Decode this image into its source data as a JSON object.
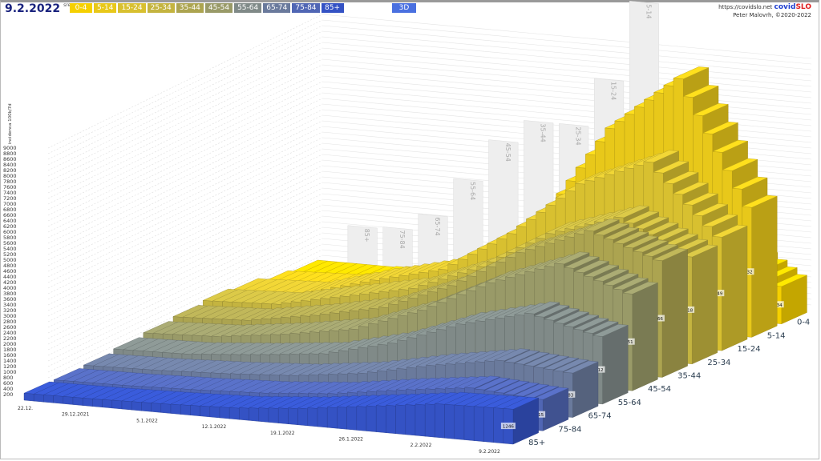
{
  "header": {
    "date": "9.2.2022",
    "date_suffix": "sre",
    "button_3d": "3D",
    "url": "https://covidslo.net",
    "brand_a": "covid",
    "brand_b": "SLO",
    "author": "Peter Malovrh, ©2020-2022"
  },
  "chart_data": {
    "type": "bar",
    "subtype": "3d-bar",
    "ylabel": "incidenca 100k/7d",
    "ylim": [
      0,
      9000
    ],
    "yticks": [
      200,
      400,
      600,
      800,
      1000,
      1200,
      1400,
      1600,
      1800,
      2000,
      2200,
      2400,
      2600,
      2800,
      3000,
      3200,
      3400,
      3600,
      3800,
      4000,
      4200,
      4400,
      4600,
      4800,
      5000,
      5200,
      5400,
      5600,
      5800,
      6000,
      6200,
      6400,
      6600,
      6800,
      7000,
      7200,
      7400,
      7600,
      7800,
      8000,
      8200,
      8400,
      8600,
      8800,
      9000
    ],
    "x": [
      "22.12.",
      "29.12.2021",
      "5.1.2022",
      "12.1.2022",
      "19.1.2022",
      "26.1.2022",
      "2.2.2022",
      "9.2.2022"
    ],
    "series": [
      {
        "name": "0-4",
        "color": "#f5d000",
        "values": [
          300,
          300,
          500,
          800,
          1500,
          2500,
          3000,
          1334
        ],
        "last_label": "1334"
      },
      {
        "name": "5-14",
        "color": "#e8c81a",
        "values": [
          400,
          500,
          900,
          1500,
          3500,
          7000,
          9000,
          4632
        ],
        "last_label": "4632"
      },
      {
        "name": "15-24",
        "color": "#d8c030",
        "values": [
          600,
          700,
          1400,
          2000,
          3500,
          5500,
          6500,
          4049
        ],
        "last_label": "4049"
      },
      {
        "name": "25-34",
        "color": "#c4b440",
        "values": [
          700,
          800,
          1300,
          1800,
          2800,
          4200,
          5000,
          3818
        ],
        "last_label": "3818"
      },
      {
        "name": "35-44",
        "color": "#aca450",
        "values": [
          600,
          700,
          1100,
          1600,
          2600,
          4000,
          5000,
          4166
        ],
        "last_label": "4166"
      },
      {
        "name": "45-54",
        "color": "#999a68",
        "values": [
          500,
          600,
          900,
          1300,
          2200,
          3400,
          4300,
          3451
        ],
        "last_label": "3451"
      },
      {
        "name": "55-64",
        "color": "#808a88",
        "values": [
          400,
          450,
          650,
          900,
          1500,
          2400,
          3000,
          2412
        ],
        "last_label": "2412"
      },
      {
        "name": "65-74",
        "color": "#6a7a9c",
        "values": [
          300,
          350,
          450,
          600,
          900,
          1400,
          1800,
          1583
        ],
        "last_label": "1583"
      },
      {
        "name": "75-84",
        "color": "#5066b4",
        "values": [
          250,
          280,
          350,
          450,
          650,
          1000,
          1300,
          1115
        ],
        "last_label": "1115"
      },
      {
        "name": "85+",
        "color": "#3452c4",
        "values": [
          250,
          270,
          320,
          400,
          600,
          900,
          1200,
          1246
        ],
        "last_label": "1246"
      }
    ]
  }
}
